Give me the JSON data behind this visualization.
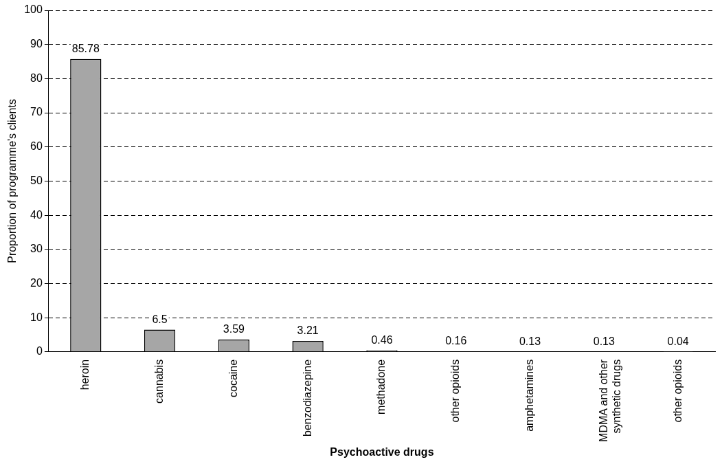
{
  "chart_data": {
    "type": "bar",
    "xlabel": "Psychoactive drugs",
    "ylabel": "Proportion of programme's clients",
    "categories": [
      "heroin",
      "cannabis",
      "cocaine",
      "benzodiazepine",
      "methadone",
      "other opioids",
      "amphetamines",
      "MDMA and other synthetic drugs",
      "other opioids"
    ],
    "values": [
      85.78,
      6.5,
      3.59,
      3.21,
      0.46,
      0.16,
      0.13,
      0.13,
      0.04
    ],
    "color": "#a6a6a6",
    "ylim": [
      0,
      100
    ],
    "yticks": [
      0,
      10,
      20,
      30,
      40,
      50,
      60,
      70,
      80,
      90,
      100
    ],
    "grid": "y",
    "data_labels": true,
    "legend": false
  }
}
